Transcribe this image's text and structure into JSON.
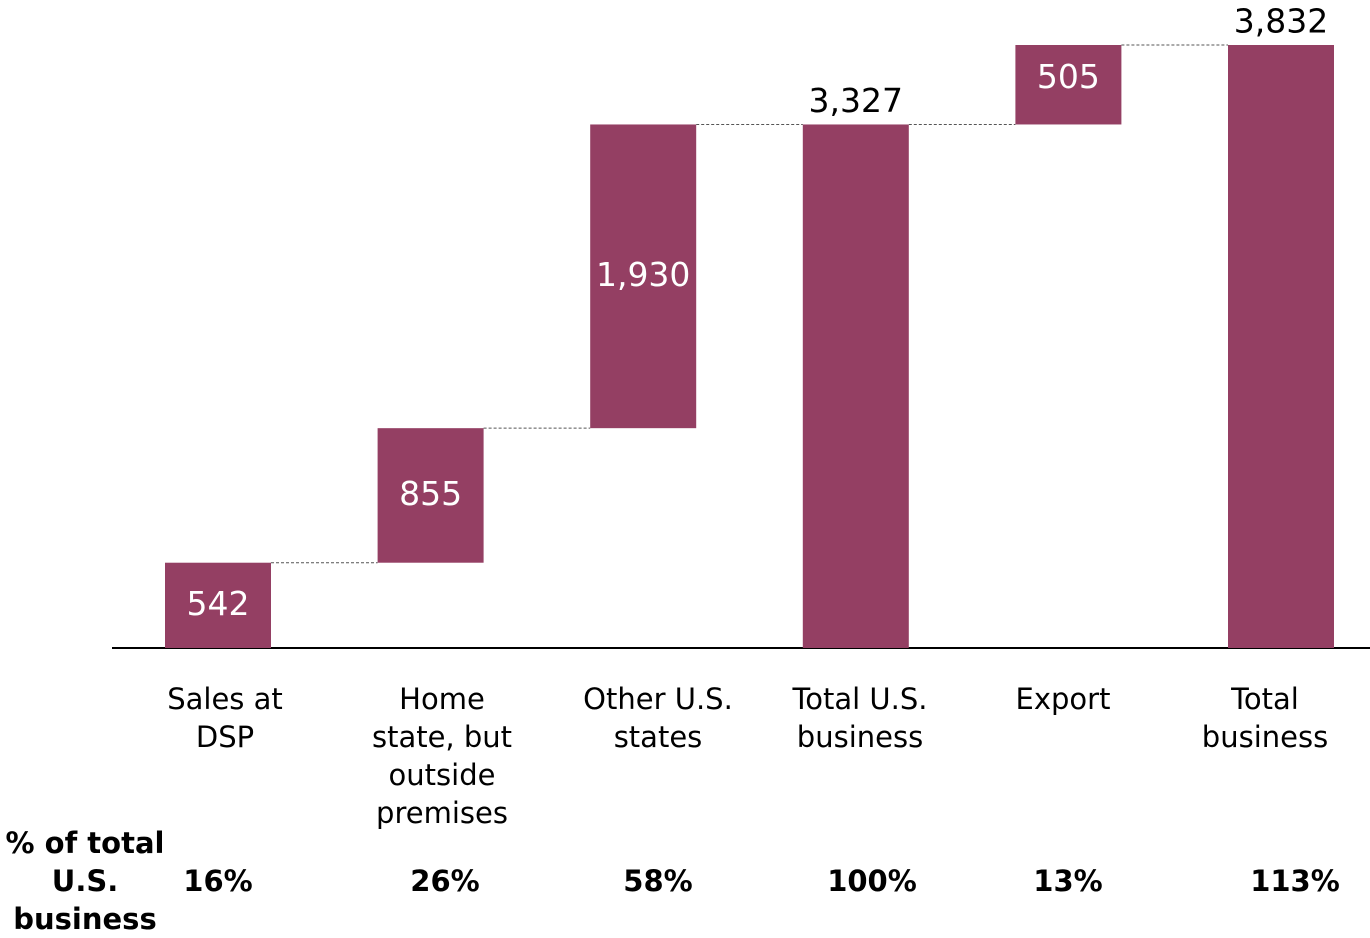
{
  "chart_data": {
    "type": "waterfall",
    "categories": [
      "Sales at DSP",
      "Home state, but outside premises",
      "Other U.S. states",
      "Total U.S. business",
      "Export",
      "Total business"
    ],
    "measure": [
      "relative",
      "relative",
      "relative",
      "total",
      "relative",
      "total"
    ],
    "values": [
      542,
      855,
      1930,
      3327,
      505,
      3832
    ],
    "value_labels": [
      "542",
      "855",
      "1,930",
      "3,327",
      "505",
      "3,832"
    ],
    "color": "#943f63",
    "row_label": "% of total U.S. business",
    "row_values": [
      16,
      26,
      58,
      100,
      13,
      113
    ],
    "row_value_labels": [
      "16%",
      "26%",
      "58%",
      "100%",
      "13%",
      "113%"
    ]
  }
}
